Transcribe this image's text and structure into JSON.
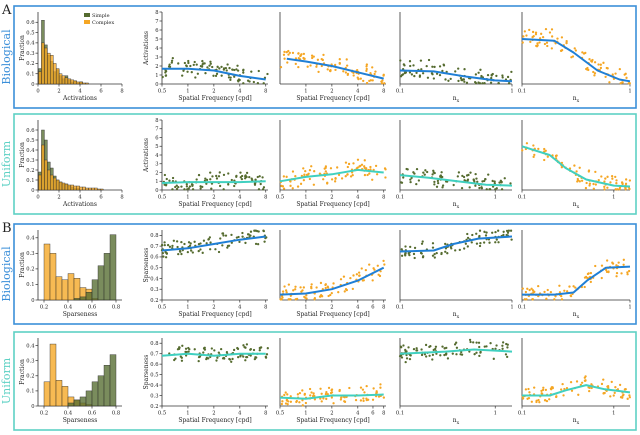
{
  "title": "",
  "panel_labels": [
    "A",
    "B"
  ],
  "row_labels": [
    "Biological",
    "Uniform",
    "Biological",
    "Uniform"
  ],
  "colors": {
    "simple": "#556b2f",
    "complex": "#f5a623",
    "bio_frame": "#3b8fd9",
    "uni_frame": "#5ed1c4",
    "bio_trend": "#1f7fd6",
    "uni_trend": "#40d0c0",
    "axis": "#333333"
  },
  "legend": {
    "simple": "Simple",
    "complex": "Complex"
  },
  "xlabels": {
    "activations": "Activations",
    "sparseness": "Sparseness",
    "spatial_frequency": "Spatial Frequency [cpd]",
    "nx": "n",
    "nx_sub": "x"
  },
  "ylabels": {
    "fraction": "Fraction",
    "activations": "Activations",
    "sparseness": "Sparseness"
  },
  "chart_data": [
    {
      "id": "A-bio-hist",
      "type": "bar",
      "row": "A-Biological",
      "xlabel": "Activations",
      "ylabel": "Fraction",
      "xlim": [
        0,
        8
      ],
      "ylim": [
        0,
        0.7
      ],
      "xticks": [
        0,
        2,
        4,
        6,
        8
      ],
      "yticks": [
        0,
        0.1,
        0.2,
        0.3,
        0.4,
        0.5,
        0.6
      ],
      "bin_width": 0.28,
      "series": [
        {
          "name": "Simple",
          "values": [
            0.15,
            0.62,
            0.38,
            0.28,
            0.22,
            0.12,
            0.14,
            0.08,
            0.05,
            0.08,
            0.04,
            0.02,
            0.03,
            0.01,
            0.02
          ]
        },
        {
          "name": "Complex",
          "values": [
            0.12,
            0.4,
            0.35,
            0.3,
            0.28,
            0.2,
            0.15,
            0.1,
            0.08,
            0.06,
            0.05,
            0.04,
            0.03,
            0.02,
            0.02,
            0.01,
            0.01
          ]
        }
      ],
      "legend": "top-right"
    },
    {
      "id": "A-bio-sf-simple",
      "type": "scatter",
      "xlabel": "Spatial Frequency [cpd]",
      "ylabel": "Activations",
      "xlim": [
        0.5,
        8.5
      ],
      "ylim": [
        0,
        8
      ],
      "xticks": [
        0.5,
        1.0,
        2.0,
        4.0,
        8.0
      ],
      "yticks": [
        0,
        1,
        2,
        3,
        4,
        5,
        6,
        7,
        8
      ],
      "xscale": "log",
      "trend": [
        [
          0.5,
          1.7
        ],
        [
          1.0,
          1.7
        ],
        [
          2.0,
          1.5
        ],
        [
          4.0,
          0.9
        ],
        [
          8.0,
          0.5
        ]
      ],
      "point_color": "simple",
      "trend_color": "bio_trend",
      "seed": 11
    },
    {
      "id": "A-bio-sf-complex",
      "type": "scatter",
      "xlabel": "Spatial Frequency [cpd]",
      "ylabel": "",
      "xlim": [
        0.5,
        8.5
      ],
      "ylim": [
        0,
        8
      ],
      "xticks": [
        1.0,
        2.0,
        4.0,
        8.0
      ],
      "yticks": [],
      "xscale": "log",
      "trend": [
        [
          0.6,
          2.8
        ],
        [
          1.0,
          2.5
        ],
        [
          2.0,
          2.0
        ],
        [
          4.0,
          1.3
        ],
        [
          8.0,
          0.6
        ]
      ],
      "point_color": "complex",
      "trend_color": "bio_trend",
      "seed": 12
    },
    {
      "id": "A-bio-nx-simple",
      "type": "scatter",
      "xlabel": "nx",
      "ylabel": "",
      "xlim": [
        0.1,
        1.0
      ],
      "ylim": [
        0,
        8
      ],
      "xticks": [
        0.1,
        1.0
      ],
      "yticks": [],
      "xscale": "log",
      "trend": [
        [
          0.1,
          1.5
        ],
        [
          0.2,
          1.4
        ],
        [
          0.4,
          0.8
        ],
        [
          0.7,
          0.4
        ],
        [
          1.0,
          0.3
        ]
      ],
      "point_color": "simple",
      "trend_color": "bio_trend",
      "seed": 13
    },
    {
      "id": "A-bio-nx-complex",
      "type": "scatter",
      "xlabel": "nx",
      "ylabel": "",
      "xlim": [
        0.1,
        1.0
      ],
      "ylim": [
        0,
        8
      ],
      "xticks": [
        0.1,
        1.0
      ],
      "yticks": [],
      "xscale": "log",
      "trend": [
        [
          0.1,
          5.0
        ],
        [
          0.2,
          4.8
        ],
        [
          0.3,
          3.5
        ],
        [
          0.5,
          1.5
        ],
        [
          0.8,
          0.5
        ],
        [
          1.0,
          0.3
        ]
      ],
      "point_color": "complex",
      "trend_color": "bio_trend",
      "seed": 14
    },
    {
      "id": "A-uni-hist",
      "type": "bar",
      "row": "A-Uniform",
      "xlabel": "Activations",
      "ylabel": "Fraction",
      "xlim": [
        0,
        8
      ],
      "ylim": [
        0,
        0.7
      ],
      "xticks": [
        0,
        2,
        4,
        6,
        8
      ],
      "yticks": [
        0,
        0.1,
        0.2,
        0.3,
        0.4,
        0.5,
        0.6
      ],
      "bin_width": 0.28,
      "series": [
        {
          "name": "Simple",
          "values": [
            0.18,
            0.6,
            0.5,
            0.28,
            0.22,
            0.14,
            0.1,
            0.08,
            0.06,
            0.06,
            0.04,
            0.03,
            0.02,
            0.02
          ]
        },
        {
          "name": "Complex",
          "values": [
            0.15,
            0.45,
            0.3,
            0.2,
            0.15,
            0.12,
            0.1,
            0.08,
            0.07,
            0.06,
            0.05,
            0.05,
            0.04,
            0.04,
            0.03,
            0.03,
            0.02,
            0.02,
            0.02,
            0.02,
            0.01,
            0.01
          ]
        }
      ]
    },
    {
      "id": "A-uni-sf-simple",
      "type": "scatter",
      "xlabel": "Spatial Frequency [cpd]",
      "ylabel": "Activations",
      "xlim": [
        0.5,
        8.5
      ],
      "ylim": [
        0,
        8
      ],
      "xticks": [
        0.5,
        1.0,
        2.0,
        4.0,
        8.0
      ],
      "yticks": [
        0,
        1,
        2,
        3,
        4,
        5,
        6,
        7,
        8
      ],
      "xscale": "log",
      "trend": [
        [
          0.5,
          0.8
        ],
        [
          1.0,
          0.9
        ],
        [
          2.0,
          0.9
        ],
        [
          4.0,
          0.9
        ],
        [
          8.0,
          1.0
        ]
      ],
      "point_color": "simple",
      "trend_color": "uni_trend",
      "seed": 21
    },
    {
      "id": "A-uni-sf-complex",
      "type": "scatter",
      "xlabel": "Spatial Frequency [cpd]",
      "ylabel": "",
      "xlim": [
        0.5,
        8.5
      ],
      "ylim": [
        0,
        8
      ],
      "xticks": [
        0.5,
        1.0,
        2.0,
        4.0,
        8.0
      ],
      "yticks": [],
      "xscale": "log",
      "trend": [
        [
          0.5,
          1.0
        ],
        [
          1.0,
          1.5
        ],
        [
          2.0,
          1.8
        ],
        [
          4.0,
          2.3
        ],
        [
          8.0,
          2.0
        ]
      ],
      "point_color": "complex",
      "trend_color": "uni_trend",
      "seed": 22
    },
    {
      "id": "A-uni-nx-simple",
      "type": "scatter",
      "xlabel": "nx",
      "ylabel": "",
      "xlim": [
        0.1,
        1.5
      ],
      "ylim": [
        0,
        8
      ],
      "xticks": [
        0.1,
        1.0
      ],
      "yticks": [],
      "xscale": "log",
      "trend": [
        [
          0.1,
          1.7
        ],
        [
          0.2,
          1.4
        ],
        [
          0.4,
          1.0
        ],
        [
          0.8,
          0.6
        ],
        [
          1.5,
          0.5
        ]
      ],
      "point_color": "simple",
      "trend_color": "uni_trend",
      "seed": 23
    },
    {
      "id": "A-uni-nx-complex",
      "type": "scatter",
      "xlabel": "nx",
      "ylabel": "",
      "xlim": [
        0.1,
        1.5
      ],
      "ylim": [
        0,
        8
      ],
      "xticks": [
        0.1,
        1.0
      ],
      "yticks": [],
      "xscale": "log",
      "trend": [
        [
          0.1,
          5.0
        ],
        [
          0.2,
          4.0
        ],
        [
          0.3,
          2.5
        ],
        [
          0.5,
          1.2
        ],
        [
          1.0,
          0.5
        ],
        [
          1.5,
          0.4
        ]
      ],
      "point_color": "complex",
      "trend_color": "uni_trend",
      "seed": 24
    },
    {
      "id": "B-bio-hist",
      "type": "bar",
      "row": "B-Biological",
      "xlabel": "Sparseness",
      "ylabel": "Fraction",
      "xlim": [
        0.15,
        0.85
      ],
      "ylim": [
        0,
        0.45
      ],
      "xticks": [
        0.2,
        0.4,
        0.6,
        0.8
      ],
      "yticks": [
        0,
        0.1,
        0.2,
        0.3,
        0.4
      ],
      "bin_width": 0.05,
      "series": [
        {
          "name": "Complex",
          "values": [
            0.36,
            0.3,
            0.15,
            0.13,
            0.17,
            0.14,
            0.08,
            0.07,
            0.01,
            0.0,
            0.0,
            0.0
          ]
        },
        {
          "name": "Simple",
          "values": [
            0.0,
            0.0,
            0.0,
            0.0,
            0.0,
            0.01,
            0.02,
            0.05,
            0.13,
            0.22,
            0.3,
            0.42
          ]
        }
      ]
    },
    {
      "id": "B-bio-sf-simple",
      "type": "scatter",
      "xlabel": "Spatial Frequency [cpd]",
      "ylabel": "Sparseness",
      "xlim": [
        0.5,
        8.5
      ],
      "ylim": [
        0.2,
        0.85
      ],
      "xticks": [
        0.5,
        1.0,
        2.0,
        4.0,
        8.0
      ],
      "yticks": [
        0.2,
        0.3,
        0.4,
        0.5,
        0.6,
        0.7,
        0.8
      ],
      "xscale": "log",
      "trend": [
        [
          0.5,
          0.66
        ],
        [
          1.0,
          0.68
        ],
        [
          2.0,
          0.72
        ],
        [
          4.0,
          0.76
        ],
        [
          8.0,
          0.79
        ]
      ],
      "point_color": "simple",
      "trend_color": "bio_trend",
      "seed": 31
    },
    {
      "id": "B-bio-sf-complex",
      "type": "scatter",
      "xlabel": "Spatial Frequency [cpd]",
      "ylabel": "",
      "xlim": [
        0.5,
        8.5
      ],
      "ylim": [
        0.2,
        0.85
      ],
      "xticks": [
        1.0,
        2.0,
        4.0,
        6.0,
        8.0
      ],
      "yticks": [],
      "xscale": "log",
      "trend": [
        [
          0.5,
          0.25
        ],
        [
          1.0,
          0.26
        ],
        [
          2.0,
          0.3
        ],
        [
          4.0,
          0.38
        ],
        [
          8.0,
          0.5
        ]
      ],
      "point_color": "complex",
      "trend_color": "bio_trend",
      "seed": 32
    },
    {
      "id": "B-bio-nx-simple",
      "type": "scatter",
      "xlabel": "nx",
      "ylabel": "",
      "xlim": [
        0.1,
        1.0
      ],
      "ylim": [
        0.2,
        0.85
      ],
      "xticks": [
        0.1,
        1.0
      ],
      "yticks": [],
      "xscale": "log",
      "trend": [
        [
          0.1,
          0.65
        ],
        [
          0.2,
          0.66
        ],
        [
          0.3,
          0.72
        ],
        [
          0.5,
          0.77
        ],
        [
          1.0,
          0.79
        ]
      ],
      "point_color": "simple",
      "trend_color": "bio_trend",
      "seed": 33
    },
    {
      "id": "B-bio-nx-complex",
      "type": "scatter",
      "xlabel": "nx",
      "ylabel": "",
      "xlim": [
        0.1,
        1.0
      ],
      "ylim": [
        0.2,
        0.85
      ],
      "xticks": [
        0.1,
        1.0
      ],
      "yticks": [],
      "xscale": "log",
      "trend": [
        [
          0.1,
          0.25
        ],
        [
          0.2,
          0.25
        ],
        [
          0.3,
          0.27
        ],
        [
          0.4,
          0.38
        ],
        [
          0.6,
          0.5
        ],
        [
          1.0,
          0.51
        ]
      ],
      "point_color": "complex",
      "trend_color": "bio_trend",
      "seed": 34
    },
    {
      "id": "B-uni-hist",
      "type": "bar",
      "row": "B-Uniform",
      "xlabel": "Sparseness",
      "ylabel": "Fraction",
      "xlim": [
        0.15,
        0.85
      ],
      "ylim": [
        0,
        0.45
      ],
      "xticks": [
        0.2,
        0.4,
        0.6,
        0.8
      ],
      "yticks": [
        0,
        0.1,
        0.2,
        0.3,
        0.4
      ],
      "bin_width": 0.05,
      "series": [
        {
          "name": "Complex",
          "values": [
            0.16,
            0.41,
            0.17,
            0.13,
            0.06,
            0.04,
            0.02,
            0.01,
            0.0,
            0.0,
            0.0,
            0.0
          ]
        },
        {
          "name": "Simple",
          "values": [
            0.0,
            0.0,
            0.0,
            0.0,
            0.02,
            0.04,
            0.06,
            0.1,
            0.16,
            0.2,
            0.27,
            0.34
          ]
        }
      ]
    },
    {
      "id": "B-uni-sf-simple",
      "type": "scatter",
      "xlabel": "Spatial Frequency [cpd]",
      "ylabel": "Sparseness",
      "xlim": [
        0.5,
        8.5
      ],
      "ylim": [
        0.2,
        0.85
      ],
      "xticks": [
        0.5,
        1.0,
        2.0,
        4.0,
        8.0
      ],
      "yticks": [
        0.2,
        0.3,
        0.4,
        0.5,
        0.6,
        0.7,
        0.8
      ],
      "xscale": "log",
      "trend": [
        [
          0.5,
          0.68
        ],
        [
          1.0,
          0.7
        ],
        [
          2.0,
          0.68
        ],
        [
          4.0,
          0.7
        ],
        [
          8.0,
          0.7
        ]
      ],
      "point_color": "simple",
      "trend_color": "uni_trend",
      "seed": 41
    },
    {
      "id": "B-uni-sf-complex",
      "type": "scatter",
      "xlabel": "Spatial Frequency [cpd]",
      "ylabel": "",
      "xlim": [
        0.5,
        8.5
      ],
      "ylim": [
        0.2,
        0.85
      ],
      "xticks": [
        0.5,
        1.0,
        2.0,
        4.0,
        6.0,
        8.0
      ],
      "yticks": [],
      "xscale": "log",
      "trend": [
        [
          0.5,
          0.28
        ],
        [
          1.0,
          0.27
        ],
        [
          2.0,
          0.3
        ],
        [
          4.0,
          0.3
        ],
        [
          8.0,
          0.31
        ]
      ],
      "point_color": "complex",
      "trend_color": "uni_trend",
      "seed": 42
    },
    {
      "id": "B-uni-nx-simple",
      "type": "scatter",
      "xlabel": "nx",
      "ylabel": "",
      "xlim": [
        0.1,
        1.5
      ],
      "ylim": [
        0.2,
        0.85
      ],
      "xticks": [
        0.1,
        1.0
      ],
      "yticks": [],
      "xscale": "log",
      "trend": [
        [
          0.1,
          0.7
        ],
        [
          0.3,
          0.72
        ],
        [
          0.6,
          0.74
        ],
        [
          1.5,
          0.72
        ]
      ],
      "point_color": "simple",
      "trend_color": "uni_trend",
      "seed": 43
    },
    {
      "id": "B-uni-nx-complex",
      "type": "scatter",
      "xlabel": "nx",
      "ylabel": "",
      "xlim": [
        0.1,
        1.5
      ],
      "ylim": [
        0.2,
        0.85
      ],
      "xticks": [
        0.1,
        1.0
      ],
      "yticks": [],
      "xscale": "log",
      "trend": [
        [
          0.1,
          0.3
        ],
        [
          0.2,
          0.3
        ],
        [
          0.3,
          0.35
        ],
        [
          0.5,
          0.4
        ],
        [
          0.8,
          0.36
        ],
        [
          1.5,
          0.33
        ]
      ],
      "point_color": "complex",
      "trend_color": "uni_trend",
      "seed": 44
    }
  ]
}
